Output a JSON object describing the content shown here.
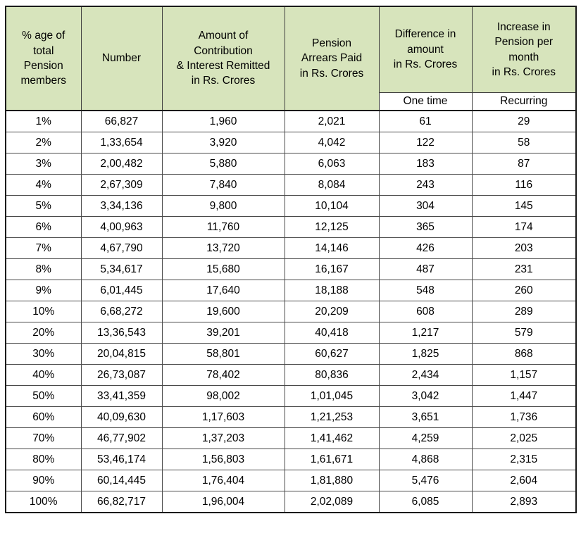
{
  "chart_data": {
    "type": "table",
    "header": {
      "percentage": "% age of\ntotal\nPension\nmembers",
      "number": "Number",
      "contribution": "Amount of\nContribution\n& Interest Remitted\nin Rs. Crores",
      "arrears": "Pension\nArrears Paid\nin Rs. Crores",
      "difference": "Difference in\namount\nin Rs. Crores",
      "increase": "Increase in\nPension per\nmonth\nin Rs. Crores",
      "sub_one_time": "One time",
      "sub_recurring": "Recurring"
    },
    "rows": [
      [
        "1%",
        "66,827",
        "1,960",
        "2,021",
        "61",
        "29"
      ],
      [
        "2%",
        "1,33,654",
        "3,920",
        "4,042",
        "122",
        "58"
      ],
      [
        "3%",
        "2,00,482",
        "5,880",
        "6,063",
        "183",
        "87"
      ],
      [
        "4%",
        "2,67,309",
        "7,840",
        "8,084",
        "243",
        "116"
      ],
      [
        "5%",
        "3,34,136",
        "9,800",
        "10,104",
        "304",
        "145"
      ],
      [
        "6%",
        "4,00,963",
        "11,760",
        "12,125",
        "365",
        "174"
      ],
      [
        "7%",
        "4,67,790",
        "13,720",
        "14,146",
        "426",
        "203"
      ],
      [
        "8%",
        "5,34,617",
        "15,680",
        "16,167",
        "487",
        "231"
      ],
      [
        "9%",
        "6,01,445",
        "17,640",
        "18,188",
        "548",
        "260"
      ],
      [
        "10%",
        "6,68,272",
        "19,600",
        "20,209",
        "608",
        "289"
      ],
      [
        "20%",
        "13,36,543",
        "39,201",
        "40,418",
        "1,217",
        "579"
      ],
      [
        "30%",
        "20,04,815",
        "58,801",
        "60,627",
        "1,825",
        "868"
      ],
      [
        "40%",
        "26,73,087",
        "78,402",
        "80,836",
        "2,434",
        "1,157"
      ],
      [
        "50%",
        "33,41,359",
        "98,002",
        "1,01,045",
        "3,042",
        "1,447"
      ],
      [
        "60%",
        "40,09,630",
        "1,17,603",
        "1,21,253",
        "3,651",
        "1,736"
      ],
      [
        "70%",
        "46,77,902",
        "1,37,203",
        "1,41,462",
        "4,259",
        "2,025"
      ],
      [
        "80%",
        "53,46,174",
        "1,56,803",
        "1,61,671",
        "4,868",
        "2,315"
      ],
      [
        "90%",
        "60,14,445",
        "1,76,404",
        "1,81,880",
        "5,476",
        "2,604"
      ],
      [
        "100%",
        "66,82,717",
        "1,96,004",
        "2,02,089",
        "6,085",
        "2,893"
      ]
    ],
    "colors": {
      "header_bg": "#d7e4bc",
      "row_bg": "#ffffff",
      "inner_border": "#3f3f3f",
      "outer_border": "#1a1a1a",
      "text": "#000000"
    }
  }
}
